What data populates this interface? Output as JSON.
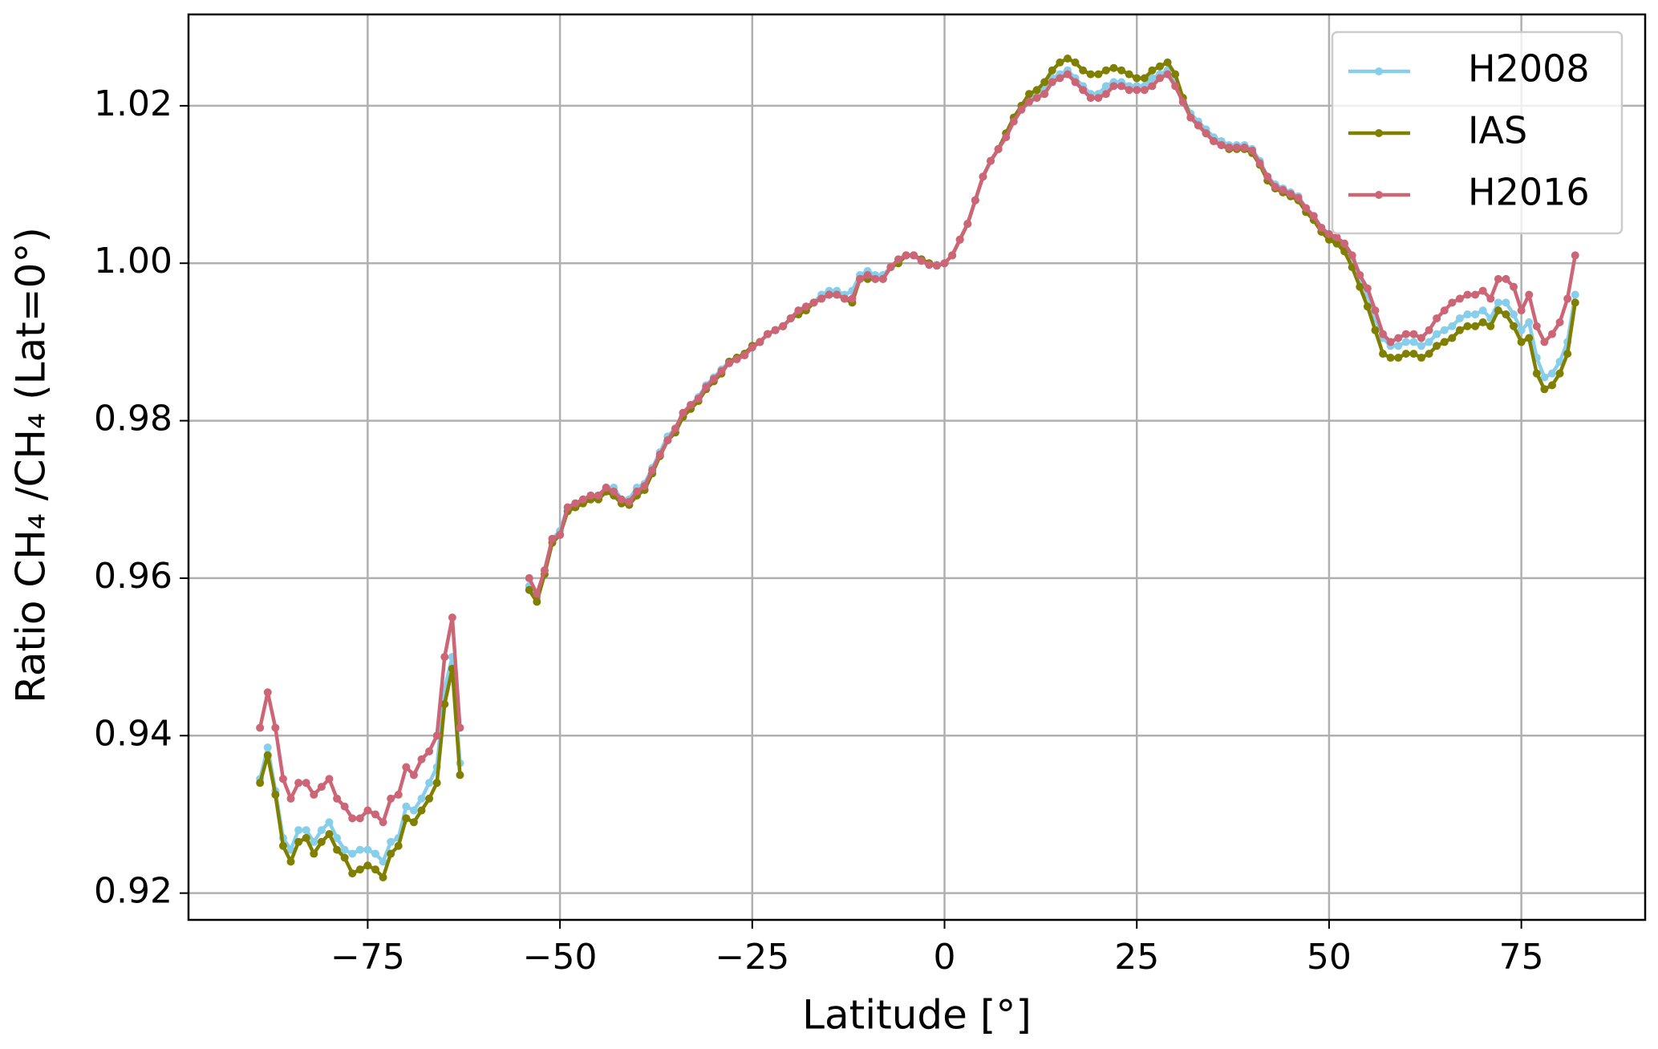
{
  "chart_data": {
    "type": "line",
    "x_label": "Latitude [°]",
    "y_label": "Ratio CH₄ /CH₄ (Lat=0°)",
    "x": [
      -89,
      -88,
      -87,
      -86,
      -85,
      -84,
      -83,
      -82,
      -81,
      -80,
      -79,
      -78,
      -77,
      -76,
      -75,
      -74,
      -73,
      -72,
      -71,
      -70,
      -69,
      -68,
      -67,
      -66,
      -65,
      -64,
      -63,
      -59,
      -54,
      -53,
      -52,
      -51,
      -50,
      -49,
      -48,
      -47,
      -46,
      -45,
      -44,
      -43,
      -42,
      -41,
      -40,
      -39,
      -38,
      -37,
      -36,
      -35,
      -34,
      -33,
      -32,
      -31,
      -30,
      -29,
      -28,
      -27,
      -26,
      -25,
      -24,
      -23,
      -22,
      -21,
      -20,
      -19,
      -18,
      -17,
      -16,
      -15,
      -14,
      -13,
      -12,
      -11,
      -10,
      -9,
      -8,
      -7,
      -6,
      -5,
      -4,
      -3,
      -2,
      -1,
      0,
      1,
      2,
      3,
      4,
      5,
      6,
      7,
      8,
      9,
      10,
      11,
      12,
      13,
      14,
      15,
      16,
      17,
      18,
      19,
      20,
      21,
      22,
      23,
      24,
      25,
      26,
      27,
      28,
      29,
      30,
      31,
      32,
      33,
      34,
      35,
      36,
      37,
      38,
      39,
      40,
      41,
      42,
      43,
      44,
      45,
      46,
      47,
      48,
      49,
      50,
      51,
      52,
      53,
      54,
      55,
      56,
      57,
      58,
      59,
      60,
      61,
      62,
      63,
      64,
      65,
      66,
      67,
      68,
      69,
      70,
      71,
      72,
      73,
      74,
      75,
      76,
      77,
      78,
      79,
      80,
      81,
      82
    ],
    "series": [
      {
        "name": "H2008",
        "color": "#87ceeb",
        "values": [
          0.9345,
          0.9385,
          0.933,
          0.927,
          0.9255,
          0.928,
          0.928,
          0.9265,
          0.928,
          0.929,
          0.927,
          0.9255,
          0.925,
          0.9255,
          0.9255,
          0.925,
          0.924,
          0.9265,
          0.927,
          0.931,
          0.9305,
          0.932,
          0.934,
          0.936,
          0.946,
          0.95,
          0.9365,
          null,
          0.959,
          0.9575,
          0.961,
          0.965,
          0.966,
          0.969,
          0.9695,
          0.97,
          0.9705,
          0.9705,
          0.9715,
          0.9715,
          0.97,
          0.97,
          0.9715,
          0.972,
          0.974,
          0.976,
          0.978,
          0.979,
          0.981,
          0.982,
          0.983,
          0.9845,
          0.9855,
          0.9865,
          0.9875,
          0.988,
          0.9885,
          0.9895,
          0.99,
          0.991,
          0.9915,
          0.992,
          0.993,
          0.994,
          0.9945,
          0.995,
          0.996,
          0.9965,
          0.9965,
          0.996,
          0.9965,
          0.9985,
          0.999,
          0.9985,
          0.9985,
          0.9995,
          1.0,
          1.001,
          1.001,
          1.0005,
          1.0,
          0.9998,
          1.0,
          1.001,
          1.003,
          1.005,
          1.008,
          1.011,
          1.013,
          1.0145,
          1.0165,
          1.0185,
          1.02,
          1.021,
          1.0215,
          1.022,
          1.0235,
          1.024,
          1.0245,
          1.0235,
          1.0225,
          1.0215,
          1.0215,
          1.0225,
          1.023,
          1.023,
          1.0225,
          1.0225,
          1.0225,
          1.0235,
          1.024,
          1.0245,
          1.023,
          1.021,
          1.019,
          1.018,
          1.017,
          1.016,
          1.0155,
          1.015,
          1.015,
          1.015,
          1.0145,
          1.013,
          1.011,
          1.01,
          1.0095,
          1.009,
          1.0085,
          1.007,
          1.006,
          1.0045,
          1.0035,
          1.003,
          1.002,
          1.0005,
          0.998,
          0.996,
          0.993,
          0.9905,
          0.9895,
          0.9895,
          0.99,
          0.99,
          0.9895,
          0.99,
          0.991,
          0.9915,
          0.992,
          0.993,
          0.9935,
          0.9935,
          0.994,
          0.993,
          0.995,
          0.995,
          0.9935,
          0.9915,
          0.9925,
          0.988,
          0.9855,
          0.986,
          0.9875,
          0.99,
          0.996
        ]
      },
      {
        "name": "IAS",
        "color": "#808000",
        "values": [
          0.934,
          0.9375,
          0.9325,
          0.926,
          0.924,
          0.9265,
          0.927,
          0.925,
          0.9265,
          0.9275,
          0.9255,
          0.9245,
          0.9225,
          0.923,
          0.9235,
          0.923,
          0.922,
          0.925,
          0.926,
          0.9295,
          0.929,
          0.9305,
          0.932,
          0.934,
          0.944,
          0.9485,
          0.935,
          null,
          0.9585,
          0.957,
          0.9605,
          0.9645,
          0.9655,
          0.9685,
          0.969,
          0.9695,
          0.97,
          0.97,
          0.971,
          0.9705,
          0.9695,
          0.9693,
          0.9705,
          0.9712,
          0.9733,
          0.9755,
          0.9775,
          0.9785,
          0.9805,
          0.9815,
          0.9825,
          0.984,
          0.985,
          0.986,
          0.9875,
          0.988,
          0.9885,
          0.9895,
          0.99,
          0.991,
          0.9915,
          0.992,
          0.993,
          0.9935,
          0.994,
          0.995,
          0.9955,
          0.996,
          0.996,
          0.9955,
          0.995,
          0.998,
          0.998,
          0.998,
          0.998,
          0.9995,
          1.0,
          1.001,
          1.001,
          1.0005,
          1.0,
          0.9997,
          1.0,
          1.001,
          1.003,
          1.005,
          1.008,
          1.011,
          1.013,
          1.0145,
          1.0165,
          1.0185,
          1.02,
          1.0215,
          1.022,
          1.023,
          1.0245,
          1.0255,
          1.026,
          1.0255,
          1.0245,
          1.024,
          1.024,
          1.0245,
          1.0248,
          1.0245,
          1.024,
          1.0235,
          1.0235,
          1.0245,
          1.025,
          1.0255,
          1.024,
          1.021,
          1.0185,
          1.0175,
          1.0165,
          1.0155,
          1.015,
          1.0145,
          1.0145,
          1.0145,
          1.014,
          1.0125,
          1.0105,
          1.0095,
          1.009,
          1.0085,
          1.008,
          1.0065,
          1.0055,
          1.004,
          1.003,
          1.0025,
          1.0015,
          0.9995,
          0.997,
          0.9945,
          0.9915,
          0.9885,
          0.988,
          0.988,
          0.9885,
          0.9885,
          0.988,
          0.9885,
          0.9895,
          0.99,
          0.9905,
          0.9915,
          0.992,
          0.992,
          0.9925,
          0.992,
          0.994,
          0.9935,
          0.992,
          0.99,
          0.9905,
          0.986,
          0.984,
          0.9845,
          0.986,
          0.9885,
          0.995
        ]
      },
      {
        "name": "H2016",
        "color": "#cc6677",
        "values": [
          0.941,
          0.9455,
          0.941,
          0.9345,
          0.932,
          0.934,
          0.934,
          0.9325,
          0.9335,
          0.9345,
          0.932,
          0.931,
          0.9295,
          0.9295,
          0.9305,
          0.93,
          0.929,
          0.932,
          0.9325,
          0.936,
          0.935,
          0.937,
          0.938,
          0.94,
          0.95,
          0.955,
          0.941,
          null,
          0.96,
          0.958,
          0.961,
          0.965,
          0.9655,
          0.969,
          0.9695,
          0.97,
          0.9705,
          0.9705,
          0.9715,
          0.971,
          0.97,
          0.9697,
          0.971,
          0.9717,
          0.9737,
          0.9757,
          0.9775,
          0.979,
          0.981,
          0.982,
          0.9828,
          0.9843,
          0.9853,
          0.9863,
          0.9873,
          0.9878,
          0.9883,
          0.9893,
          0.99,
          0.991,
          0.9915,
          0.992,
          0.993,
          0.994,
          0.9945,
          0.995,
          0.9955,
          0.996,
          0.996,
          0.9955,
          0.9955,
          0.998,
          0.9985,
          0.998,
          0.998,
          0.9995,
          1.0005,
          1.001,
          1.001,
          1.0003,
          0.9998,
          0.9997,
          1.0,
          1.001,
          1.003,
          1.005,
          1.008,
          1.011,
          1.013,
          1.0145,
          1.016,
          1.018,
          1.0195,
          1.0205,
          1.021,
          1.0215,
          1.023,
          1.0235,
          1.024,
          1.023,
          1.022,
          1.021,
          1.021,
          1.0215,
          1.0225,
          1.0225,
          1.022,
          1.022,
          1.022,
          1.0225,
          1.0235,
          1.024,
          1.0225,
          1.0205,
          1.0185,
          1.0175,
          1.0165,
          1.0155,
          1.015,
          1.0147,
          1.0147,
          1.0147,
          1.0143,
          1.0127,
          1.011,
          1.0097,
          1.0093,
          1.0088,
          1.0083,
          1.007,
          1.006,
          1.0045,
          1.0037,
          1.0033,
          1.0025,
          1.001,
          0.9985,
          0.9968,
          0.994,
          0.991,
          0.99,
          0.9905,
          0.991,
          0.991,
          0.9905,
          0.9915,
          0.993,
          0.994,
          0.995,
          0.9955,
          0.996,
          0.996,
          0.9965,
          0.9955,
          0.998,
          0.998,
          0.997,
          0.994,
          0.996,
          0.992,
          0.99,
          0.991,
          0.9925,
          0.9955,
          1.001
        ]
      }
    ],
    "xlim": [
      -98.3,
      91.1
    ],
    "ylim": [
      0.9166,
      1.0316
    ],
    "xticks": [
      {
        "value": -75,
        "label": "−75"
      },
      {
        "value": -50,
        "label": "−50"
      },
      {
        "value": -25,
        "label": "−25"
      },
      0,
      25,
      50,
      75
    ],
    "yticks": [
      0.92,
      0.94,
      0.96,
      0.98,
      {
        "value": 1,
        "label": "1.00"
      },
      1.02
    ],
    "grid": true,
    "legend": "upper right"
  }
}
